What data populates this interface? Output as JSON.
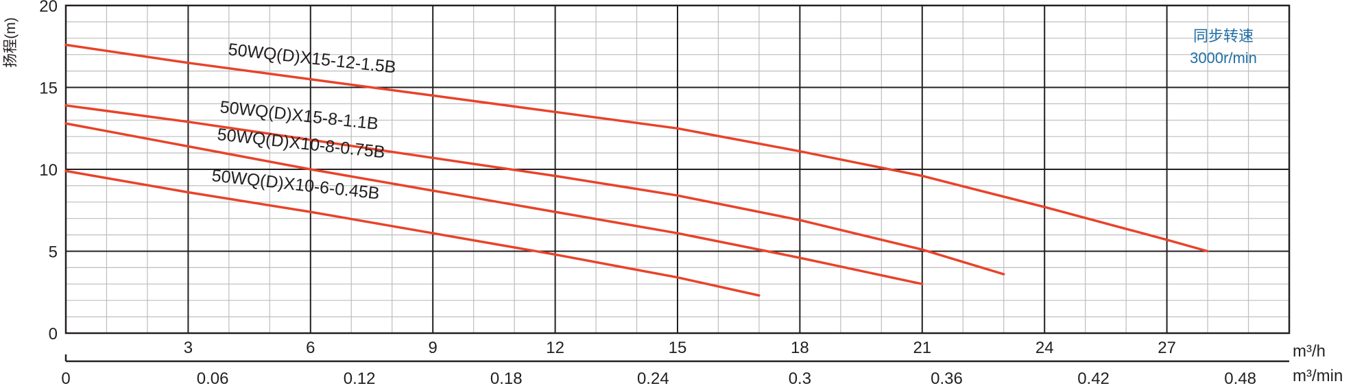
{
  "chart_data": {
    "type": "line",
    "ylabel": "扬程(m)",
    "x_primary_unit": "m³/h",
    "x_secondary_unit": "m³/min",
    "ylim": [
      0,
      20
    ],
    "yticks": [
      "0",
      "5",
      "10",
      "15",
      "20"
    ],
    "xlim": [
      0,
      30
    ],
    "x_primary_ticks": [
      {
        "value": 3,
        "label": "3"
      },
      {
        "value": 6,
        "label": "6"
      },
      {
        "value": 9,
        "label": "9"
      },
      {
        "value": 12,
        "label": "12"
      },
      {
        "value": 15,
        "label": "15"
      },
      {
        "value": 18,
        "label": "18"
      },
      {
        "value": 21,
        "label": "21"
      },
      {
        "value": 24,
        "label": "24"
      },
      {
        "value": 27,
        "label": "27"
      }
    ],
    "x_secondary_ticks": [
      {
        "value": 0,
        "label": "0"
      },
      {
        "value": 0.06,
        "label": "0.06"
      },
      {
        "value": 0.12,
        "label": "0.12"
      },
      {
        "value": 0.18,
        "label": "0.18"
      },
      {
        "value": 0.24,
        "label": "0.24"
      },
      {
        "value": 0.3,
        "label": "0.3"
      },
      {
        "value": 0.36,
        "label": "0.36"
      },
      {
        "value": 0.42,
        "label": "0.42"
      },
      {
        "value": 0.48,
        "label": "0.48"
      }
    ],
    "grid": true,
    "annotation": {
      "lines": [
        "同步转速",
        "3000r/min"
      ],
      "position": "top-right"
    },
    "line_color": "#e8432a",
    "annotation_color": "#1f6ea5",
    "series": [
      {
        "name": "50WQ(D)X15-12-1.5B",
        "x": [
          0,
          3,
          6,
          9,
          12,
          15,
          18,
          21,
          24,
          27,
          28
        ],
        "y": [
          17.6,
          16.5,
          15.5,
          14.5,
          13.5,
          12.5,
          11.1,
          9.6,
          7.7,
          5.7,
          5.0
        ]
      },
      {
        "name": "50WQ(D)X15-8-1.1B",
        "x": [
          0,
          3,
          6,
          9,
          12,
          15,
          18,
          21,
          23
        ],
        "y": [
          13.9,
          12.9,
          11.8,
          10.7,
          9.6,
          8.4,
          6.9,
          5.1,
          3.6
        ]
      },
      {
        "name": "50WQ(D)X10-8-0.75B",
        "x": [
          0,
          3,
          6,
          9,
          12,
          15,
          18,
          21
        ],
        "y": [
          12.8,
          11.4,
          10.0,
          8.7,
          7.4,
          6.1,
          4.6,
          3.0
        ]
      },
      {
        "name": "50WQ(D)X10-6-0.45B",
        "x": [
          0,
          3,
          6,
          9,
          12,
          15,
          17
        ],
        "y": [
          9.9,
          8.6,
          7.4,
          6.1,
          4.8,
          3.4,
          2.3
        ]
      }
    ]
  }
}
